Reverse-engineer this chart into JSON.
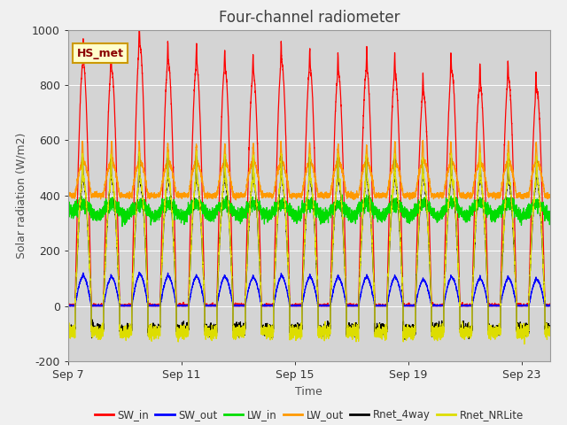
{
  "title": "Four-channel radiometer",
  "xlabel": "Time",
  "ylabel": "Solar radiation (W/m2)",
  "ylim": [
    -200,
    1000
  ],
  "xtick_positions": [
    0,
    4,
    8,
    12,
    16
  ],
  "xtick_labels": [
    "Sep 7",
    "Sep 11",
    "Sep 15",
    "Sep 19",
    "Sep 23"
  ],
  "ytick_positions": [
    -200,
    0,
    200,
    400,
    600,
    800,
    1000
  ],
  "fig_bg_color": "#f0f0f0",
  "plot_bg_color": "#d4d4d4",
  "title_color": "#404040",
  "axis_color": "#505050",
  "grid_color": "#ffffff",
  "legend_entries": [
    "SW_in",
    "SW_out",
    "LW_in",
    "LW_out",
    "Rnet_4way",
    "Rnet_NRLite"
  ],
  "line_colors": [
    "#ff0000",
    "#0000ff",
    "#00dd00",
    "#ff9900",
    "#000000",
    "#dddd00"
  ],
  "annotation_text": "HS_met",
  "annotation_fg": "#8b0000",
  "annotation_bg": "#ffffcc",
  "annotation_border": "#cc9900",
  "n_days": 17,
  "points_per_day": 288
}
